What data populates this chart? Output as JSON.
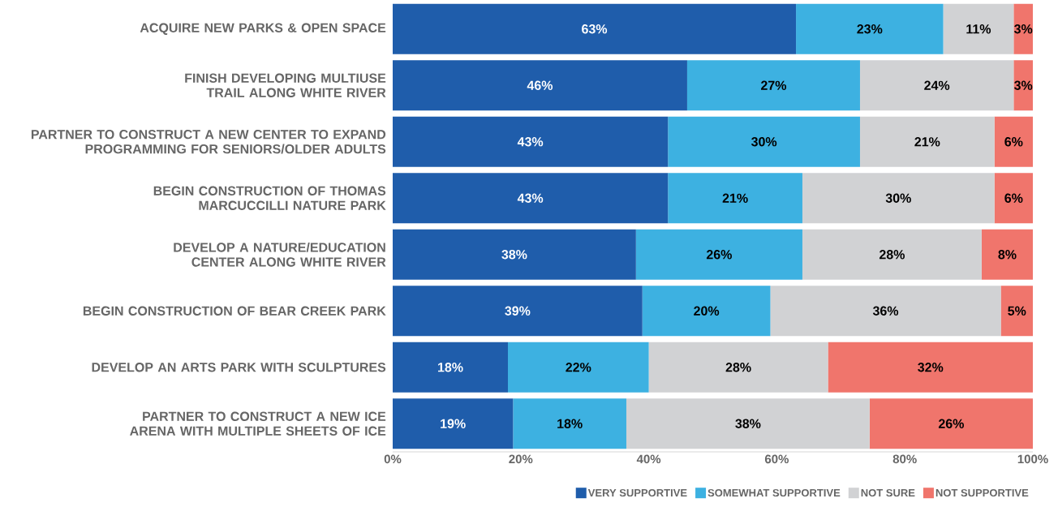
{
  "chart_data": {
    "type": "bar",
    "orientation": "horizontal",
    "stacked": true,
    "legend": "bottom right",
    "grid": false,
    "categories": [
      "ACQUIRE NEW PARKS & OPEN SPACE",
      "FINISH DEVELOPING MULTIUSE TRAIL ALONG WHITE RIVER",
      "PARTNER TO CONSTRUCT A NEW CENTER TO EXPAND PROGRAMMING FOR SENIORS/OLDER ADULTS",
      "BEGIN CONSTRUCTION OF THOMAS MARCUCCILLI NATURE PARK",
      "DEVELOP A NATURE/EDUCATION CENTER ALONG WHITE RIVER",
      "BEGIN CONSTRUCTION OF BEAR CREEK PARK",
      "DEVELOP AN ARTS PARK WITH SCULPTURES",
      "PARTNER TO CONSTRUCT A NEW ICE ARENA WITH MULTIPLE SHEETS OF ICE"
    ],
    "xlim": [
      0,
      100
    ],
    "xticks": [
      {
        "value": 0,
        "label": "0%"
      },
      {
        "value": 20,
        "label": "20%"
      },
      {
        "value": 40,
        "label": "40%"
      },
      {
        "value": 60,
        "label": "60%"
      },
      {
        "value": 80,
        "label": "80%"
      },
      {
        "value": 100,
        "label": "100%"
      }
    ],
    "series": [
      {
        "name": "VERY SUPPORTIVE",
        "color": "#1f5dab",
        "values": [
          63,
          46,
          43,
          43,
          38,
          39,
          18,
          18.8
        ],
        "value_labels": [
          "63%",
          "46%",
          "43%",
          "43%",
          "38%",
          "39%",
          "18%",
          "19%"
        ]
      },
      {
        "name": "SOMEWHAT SUPPORTIVE",
        "color": "#3db1e1",
        "values": [
          23,
          27,
          30,
          21,
          26,
          20,
          22,
          17.7
        ],
        "value_labels": [
          "23%",
          "27%",
          "30%",
          "21%",
          "26%",
          "20%",
          "22%",
          "18%"
        ]
      },
      {
        "name": "NOT SURE",
        "color": "#d1d2d4",
        "values": [
          11,
          24,
          21,
          30,
          28,
          36,
          28,
          38
        ],
        "value_labels": [
          "11%",
          "24%",
          "21%",
          "30%",
          "28%",
          "36%",
          "28%",
          "38%"
        ]
      },
      {
        "name": "NOT SUPPORTIVE",
        "color": "#f0756c",
        "values": [
          3,
          3,
          6,
          6,
          8,
          5,
          32,
          25.5
        ],
        "value_labels": [
          "3%",
          "3%",
          "6%",
          "6%",
          "8%",
          "5%",
          "32%",
          "26%"
        ]
      }
    ]
  }
}
